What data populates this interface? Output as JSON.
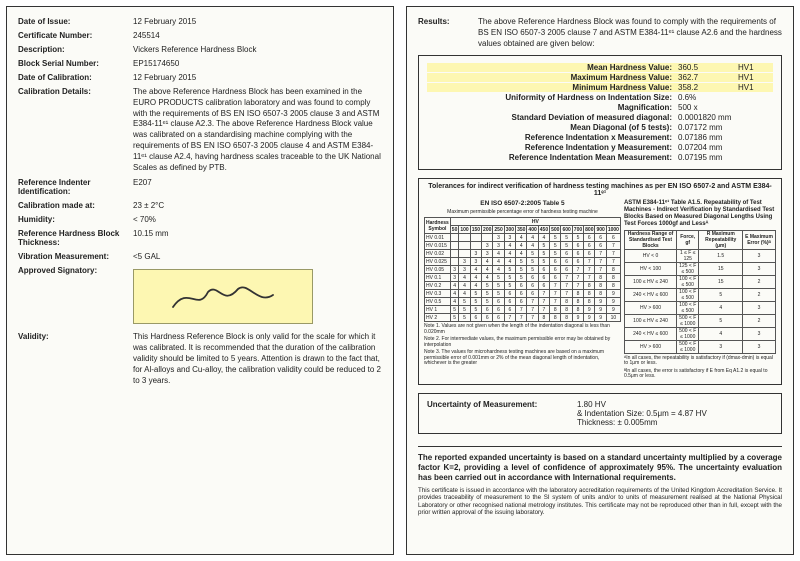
{
  "left": {
    "dateIssueLbl": "Date of Issue:",
    "dateIssue": "12 February 2015",
    "certNoLbl": "Certificate Number:",
    "certNo": "245514",
    "descLbl": "Description:",
    "desc": "Vickers Reference Hardness Block",
    "serialLbl": "Block Serial Number:",
    "serial": "EP15174650",
    "calDateLbl": "Date of Calibration:",
    "calDate": "12 February 2015",
    "calDetailsLbl": "Calibration Details:",
    "calDetails": "The above Reference Hardness Block has been examined in the EURO PRODUCTS calibration laboratory and was found to comply with the requirements of BS EN ISO 6507-3 2005 clause 3 and ASTM E384-11ᵉ¹ clause A2.3. The above Reference Hardness Block value was calibrated on a standardising machine complying with the requirements of BS EN ISO 6507-3 2005 clause 4 and ASTM E384-11ᵉ¹ clause A2.4, having hardness scales traceable to the UK National Scales as defined by PTB.",
    "indenterLbl": "Reference Indenter Identification:",
    "indenter": "E207",
    "calAtLbl": "Calibration made at:",
    "calAt": "23 ± 2°C",
    "humidityLbl": "Humidity:",
    "humidity": "< 70%",
    "thickLbl": "Reference Hardness Block Thickness:",
    "thick": "10.15 mm",
    "vibLbl": "Vibration Measurement:",
    "vib": "<5 GAL",
    "approvedLbl": "Approved Signatory:",
    "validityLbl": "Validity:",
    "validity": "This Hardness Reference Block is only valid for the scale for which it was calibrated. It is recommended that the duration of the calibration validity should be limited to 5 years. Attention is drawn to the fact that, for Al-alloys and Cu-alloy, the calibration validity could be reduced to 2 to 3 years."
  },
  "right": {
    "resultsLbl": "Results:",
    "resultsHead": "The above Reference Hardness Block was found to comply with the requirements of BS EN ISO 6507-3 2005 clause 7 and ASTM E384-11ᵉ¹ clause A2.6 and the hardness values obtained are given below:",
    "meanLbl": "Mean Hardness Value:",
    "mean": "360.5",
    "meanU": "HV1",
    "maxLbl": "Maximum Hardness Value:",
    "max": "362.7",
    "maxU": "HV1",
    "minLbl": "Minimum Hardness Value:",
    "min": "358.2",
    "minU": "HV1",
    "unifLbl": "Uniformity of Hardness on Indentation Size:",
    "unif": "0.6%",
    "magLbl": "Magnification:",
    "mag": "500 x",
    "sdLbl": "Standard Deviation of measured diagonal:",
    "sd": "0.0001820 mm",
    "meanDiagLbl": "Mean Diagonal (of 5 tests):",
    "meanDiag": "0.07172 mm",
    "refXLbl": "Reference Indentation x Measurement:",
    "refX": "0.07186 mm",
    "refYLbl": "Reference Indentation y Measurement:",
    "refY": "0.07204 mm",
    "refMeanLbl": "Reference Indentation Mean Measurement:",
    "refMean": "0.07195 mm",
    "tolTitle": "Tolerances for indirect verification of hardness testing machines as per EN ISO 6507-2 and ASTM E384-11ᵉ¹",
    "tolLeftSub": "EN ISO 6507-2:2005 Table 5",
    "tolLeftSub2": "Maximum permissible percentage error of hardness testing machine",
    "tolRightSub": "ASTM E384-11ᵉ¹ Table A1.5. Repeatability of Test Machines - Indirect Verification by Standardised Test Blocks Based on Measured Diagonal Lengths Using Test Forces 1000gf and Lessᴬ",
    "hardnessSymbolHdr": "Hardness Symbol",
    "leftRows": [
      "HV 0.01",
      "HV 0.015",
      "HV 0.02",
      "HV 0.025",
      "HV 0.05",
      "HV 0.1",
      "HV 0.2",
      "HV 0.3",
      "HV 0.5",
      "HV 1",
      "HV 2"
    ],
    "leftCols": [
      "50",
      "100",
      "150",
      "200",
      "250",
      "300",
      "350",
      "400",
      "450",
      "500",
      "600",
      "700",
      "800",
      "900",
      "1000"
    ],
    "rightHdr1": "Hardness Range of Standardised Test Blocks",
    "rightHdr2": "Force, gf",
    "rightHdr3": "R Maximum Repeatability (μm)",
    "rightHdr4": "E Maximum Error (%)ᴮ",
    "rightRows": [
      [
        "HV < 0",
        "1 ≤ F ≤ 125",
        "1.5",
        "3"
      ],
      [
        "HV < 100",
        "125 < F ≤ 500",
        "15",
        "3"
      ],
      [
        "100 ≤ HV ≤ 240",
        "100 < F ≤ 500",
        "15",
        "2"
      ],
      [
        "240 < HV ≤ 600",
        "100 < F ≤ 500",
        "5",
        "2"
      ],
      [
        "HV > 600",
        "100 < F ≤ 500",
        "4",
        "3"
      ],
      [
        "100 ≤ HV ≤ 240",
        "500 < F ≤ 1000",
        "5",
        "2"
      ],
      [
        "240 < HV ≤ 600",
        "500 < F ≤ 1000",
        "4",
        "3"
      ],
      [
        "HV > 600",
        "500 < F ≤ 1000",
        "3",
        "3"
      ]
    ],
    "tolNote1": "Note 1. Values are not given when the length of the indentation diagonal is less than 0.020mm",
    "tolNote2": "Note 2. For intermediate values, the maximum permissible error may be obtained by interpolation",
    "tolNote3": "Note 3. The values for microhardness testing machines are based on a maximum permissible error of 0.001mm or 2% of the mean diagonal length of indentation, whichever is the greater",
    "tolNoteR1": "ᴬIn all cases, the repeatability is satisfactory if (dmax-dmin) is equal to 1μm or less.",
    "tolNoteR2": "ᴮIn all cases, the error is satisfactory if E from Eq A1.2 is equal to 0.5μm or less.",
    "uncLbl": "Uncertainty of Measurement:",
    "uncV": "1.80 HV",
    "uncInd": "& Indentation Size: 0.5μm = 4.87 HV",
    "uncThk": "Thickness: ± 0.005mm",
    "footBold": "The reported expanded uncertainty is based on a standard uncertainty multiplied by a coverage factor K=2, providing a level of confidence of approximately 95%. The uncertainty evaluation has been carried out in accordance with International requirements.",
    "footSmall": "This certificate is issued in accordance with the laboratory accreditation requirements of the United Kingdom Accreditation Service. It provides traceability of measurement to the SI system of units and/or to units of measurement realised at the National Physical Laboratory or other recognised national metrology institutes. This certificate may not be reproduced other than in full, except with the prior written approval of the issuing laboratory."
  }
}
